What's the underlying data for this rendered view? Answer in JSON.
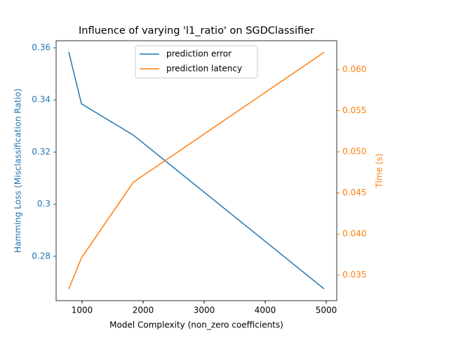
{
  "chart_data": {
    "type": "line",
    "title": "Influence of varying 'l1_ratio' on SGDClassifier",
    "x_label": "Model Complexity (non_zero coefficients)",
    "y_label": "Hamming Loss (Misclassification Ratio)",
    "y2_label": "Time (s)",
    "x": [
      782,
      990,
      1840,
      4966
    ],
    "series": [
      {
        "name": "prediction error",
        "color": "#1f77b4",
        "values": [
          0.3584,
          0.3385,
          0.3265,
          0.2675
        ]
      },
      {
        "name": "prediction latency",
        "color": "#ff7f0e",
        "axis": "y2",
        "values": [
          0.0333,
          0.0371,
          0.0463,
          0.0621
        ]
      }
    ],
    "xlim": [
      575,
      5172
    ],
    "xticks": [
      1000,
      2000,
      3000,
      4000,
      5000
    ],
    "ylim": [
      0.263,
      0.3627
    ],
    "yticks": [
      0.28,
      0.3,
      0.32,
      0.34,
      0.36
    ],
    "y2lim": [
      0.0319,
      0.0635
    ],
    "y2ticks": [
      {
        "value": 0.035,
        "label": "0.035"
      },
      {
        "value": 0.04,
        "label": "0.040"
      },
      {
        "value": 0.045,
        "label": "0.045"
      },
      {
        "value": 0.05,
        "label": "0.050"
      },
      {
        "value": 0.055,
        "label": "0.055"
      },
      {
        "value": 0.06,
        "label": "0.060"
      }
    ],
    "legend": "upper center"
  }
}
